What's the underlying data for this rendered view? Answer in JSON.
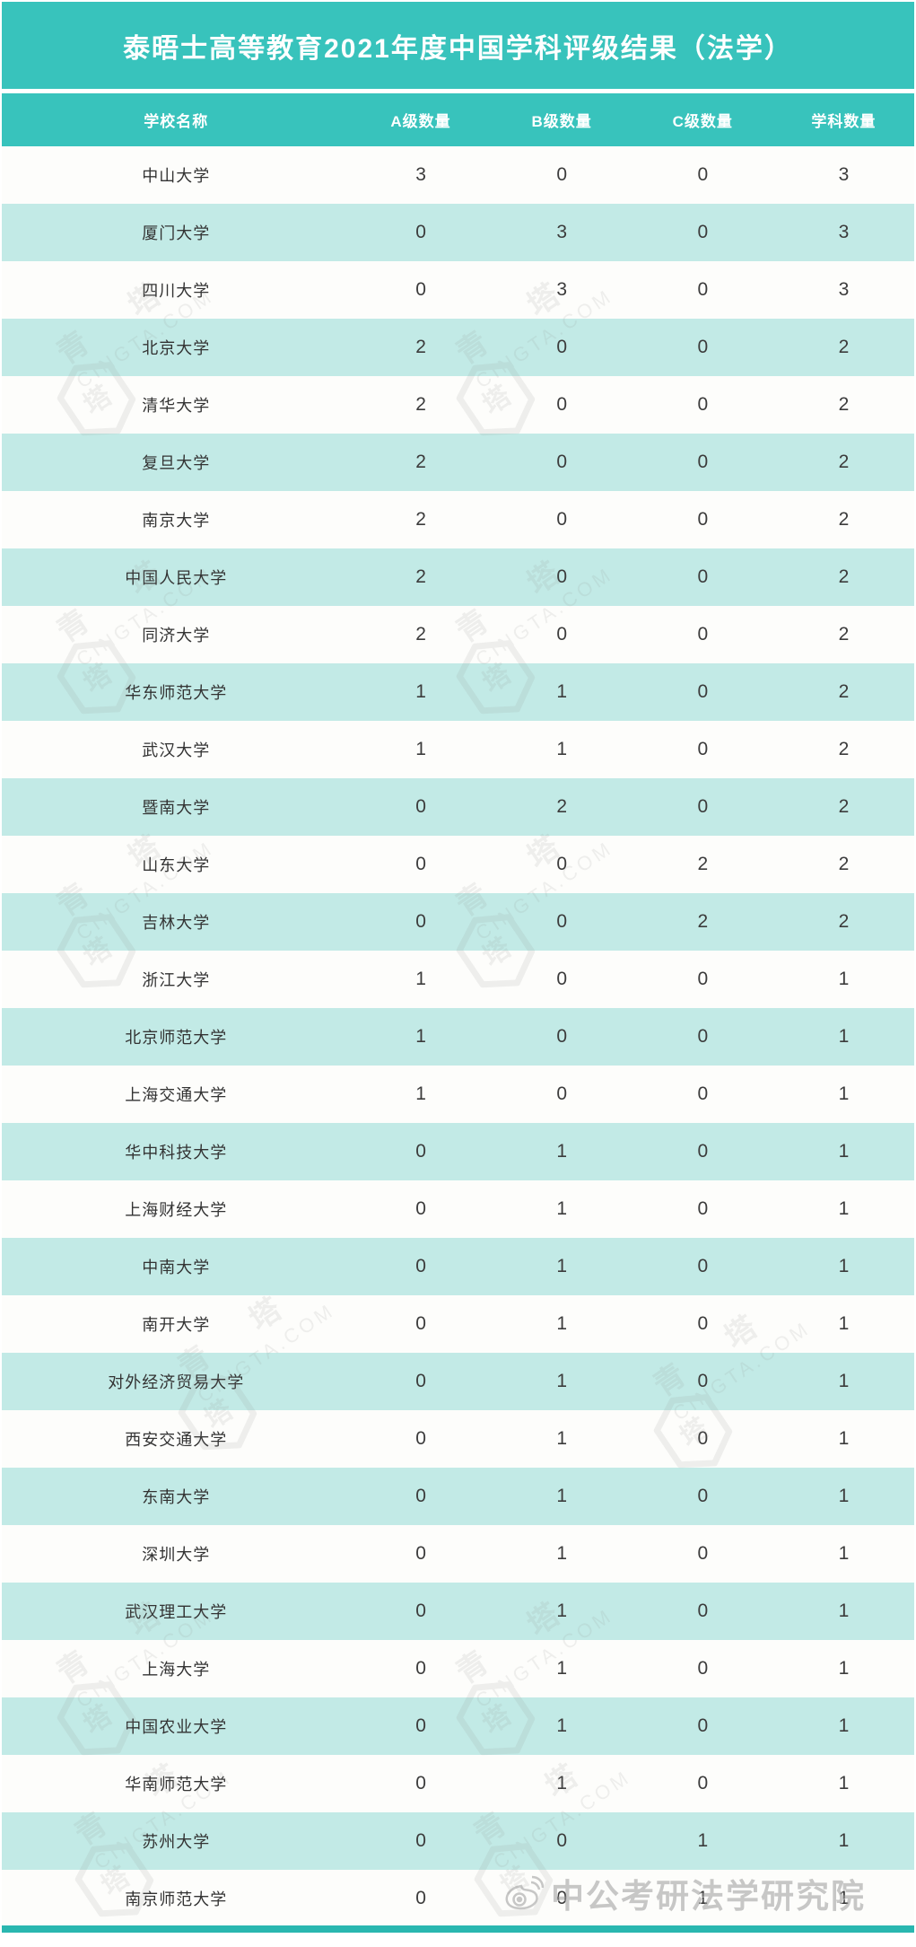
{
  "page": {
    "title": "泰晤士高等教育2021年度中国学科评级结果（法学）"
  },
  "chart_data": {
    "type": "table",
    "title": "泰晤士高等教育2021年度中国学科评级结果（法学）",
    "columns": [
      "学校名称",
      "A级数量",
      "B级数量",
      "C级数量",
      "学科数量"
    ],
    "rows": [
      [
        "中山大学",
        3,
        0,
        0,
        3
      ],
      [
        "厦门大学",
        0,
        3,
        0,
        3
      ],
      [
        "四川大学",
        0,
        3,
        0,
        3
      ],
      [
        "北京大学",
        2,
        0,
        0,
        2
      ],
      [
        "清华大学",
        2,
        0,
        0,
        2
      ],
      [
        "复旦大学",
        2,
        0,
        0,
        2
      ],
      [
        "南京大学",
        2,
        0,
        0,
        2
      ],
      [
        "中国人民大学",
        2,
        0,
        0,
        2
      ],
      [
        "同济大学",
        2,
        0,
        0,
        2
      ],
      [
        "华东师范大学",
        1,
        1,
        0,
        2
      ],
      [
        "武汉大学",
        1,
        1,
        0,
        2
      ],
      [
        "暨南大学",
        0,
        2,
        0,
        2
      ],
      [
        "山东大学",
        0,
        0,
        2,
        2
      ],
      [
        "吉林大学",
        0,
        0,
        2,
        2
      ],
      [
        "浙江大学",
        1,
        0,
        0,
        1
      ],
      [
        "北京师范大学",
        1,
        0,
        0,
        1
      ],
      [
        "上海交通大学",
        1,
        0,
        0,
        1
      ],
      [
        "华中科技大学",
        0,
        1,
        0,
        1
      ],
      [
        "上海财经大学",
        0,
        1,
        0,
        1
      ],
      [
        "中南大学",
        0,
        1,
        0,
        1
      ],
      [
        "南开大学",
        0,
        1,
        0,
        1
      ],
      [
        "对外经济贸易大学",
        0,
        1,
        0,
        1
      ],
      [
        "西安交通大学",
        0,
        1,
        0,
        1
      ],
      [
        "东南大学",
        0,
        1,
        0,
        1
      ],
      [
        "深圳大学",
        0,
        1,
        0,
        1
      ],
      [
        "武汉理工大学",
        0,
        1,
        0,
        1
      ],
      [
        "上海大学",
        0,
        1,
        0,
        1
      ],
      [
        "中国农业大学",
        0,
        1,
        0,
        1
      ],
      [
        "华南师范大学",
        0,
        1,
        0,
        1
      ],
      [
        "苏州大学",
        0,
        0,
        1,
        1
      ],
      [
        "南京师范大学",
        0,
        0,
        1,
        1
      ]
    ]
  },
  "watermarks": {
    "brand_cn": "青 塔",
    "brand_domain": "CINGTA.COM",
    "hexagon_glyph": "塔",
    "bottom_right": "中公考研法学研究院"
  },
  "colors": {
    "teal_header": "#38c3bc",
    "teal_row": "#c2eae6",
    "white_row": "#fdfdfb",
    "bottom_bar": "#2ab7b0",
    "value_text": "#3c3c3c"
  }
}
